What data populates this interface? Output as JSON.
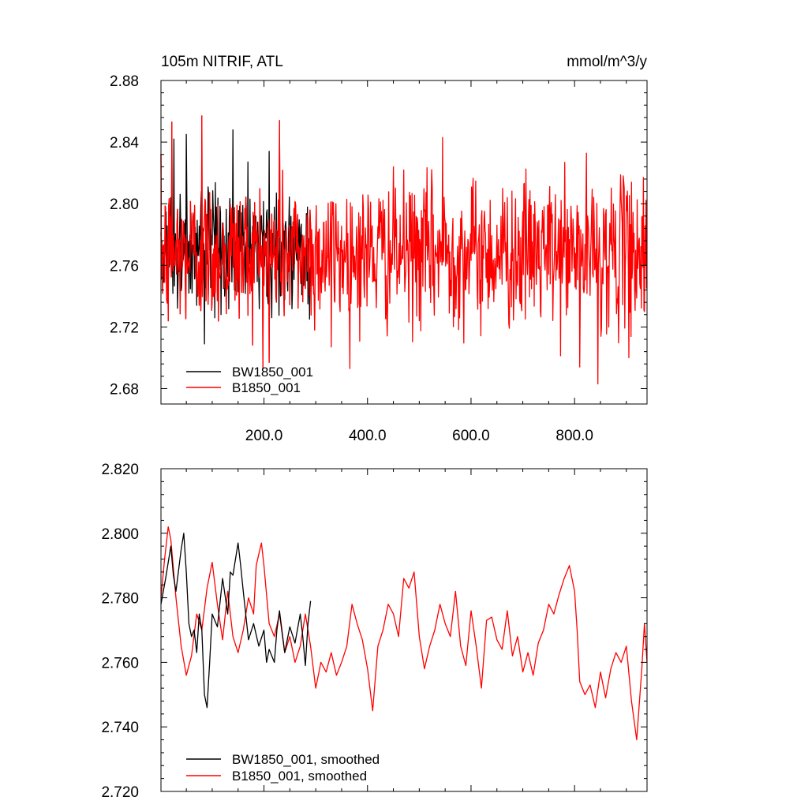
{
  "colors": {
    "BW1850_001": "#000000",
    "B1850_001": "#ff0000",
    "background": "#ffffff"
  },
  "chart_data": [
    {
      "type": "line",
      "title_left": "105m NITRIF, ATL",
      "title_right": "mmol/m^3/y",
      "xlim": [
        1,
        940
      ],
      "ylim": [
        2.67,
        2.88
      ],
      "x_ticks": [
        200,
        400,
        600,
        800
      ],
      "x_tick_labels": [
        "200.0",
        "400.0",
        "600.0",
        "800.0"
      ],
      "y_ticks": [
        2.68,
        2.72,
        2.76,
        2.8,
        2.84,
        2.88
      ],
      "y_tick_labels": [
        "2.68",
        "2.72",
        "2.76",
        "2.80",
        "2.84",
        "2.88"
      ],
      "grid": false,
      "legend_position": "bottom-left",
      "series": [
        {
          "name": "BW1850_001",
          "color": "#000000",
          "x_range": [
            1,
            290
          ],
          "mean": 2.77,
          "approx_range": [
            2.708,
            2.848
          ],
          "annotated_points": [
            [
              20,
              2.804
            ],
            [
              26,
              2.842
            ],
            [
              50,
              2.845
            ],
            [
              70,
              2.734
            ],
            [
              85,
              2.709
            ],
            [
              105,
              2.726
            ],
            [
              140,
              2.848
            ],
            [
              210,
              2.834
            ],
            [
              255,
              2.742
            ],
            [
              285,
              2.735
            ]
          ]
        },
        {
          "name": "B1850_001",
          "color": "#ff0000",
          "x_range": [
            1,
            940
          ],
          "mean": 2.768,
          "approx_range": [
            2.683,
            2.857
          ],
          "annotated_points": [
            [
              15,
              2.724
            ],
            [
              22,
              2.853
            ],
            [
              80,
              2.857
            ],
            [
              210,
              2.697
            ],
            [
              230,
              2.854
            ],
            [
              330,
              2.707
            ],
            [
              545,
              2.843
            ],
            [
              810,
              2.694
            ],
            [
              845,
              2.683
            ],
            [
              905,
              2.7
            ],
            [
              910,
              2.814
            ],
            [
              935,
              2.73
            ]
          ]
        }
      ]
    },
    {
      "type": "line",
      "xlim": [
        1,
        940
      ],
      "ylim": [
        2.72,
        2.82
      ],
      "x_ticks": [
        200,
        400,
        600,
        800
      ],
      "y_ticks": [
        2.72,
        2.74,
        2.76,
        2.78,
        2.8,
        2.82
      ],
      "y_tick_labels": [
        "2.720",
        "2.740",
        "2.760",
        "2.780",
        "2.800",
        "2.820"
      ],
      "grid": false,
      "legend_position": "bottom-left",
      "series": [
        {
          "name": "BW1850_001, smoothed",
          "color": "#000000",
          "x": [
            1,
            10,
            20,
            25,
            30,
            40,
            45,
            50,
            55,
            60,
            65,
            70,
            75,
            80,
            85,
            90,
            95,
            100,
            110,
            120,
            130,
            135,
            140,
            150,
            155,
            160,
            170,
            180,
            190,
            200,
            205,
            210,
            220,
            225,
            230,
            240,
            250,
            260,
            270,
            275,
            280,
            285,
            290
          ],
          "y": [
            2.778,
            2.786,
            2.796,
            2.787,
            2.782,
            2.795,
            2.8,
            2.788,
            2.772,
            2.768,
            2.77,
            2.763,
            2.775,
            2.77,
            2.75,
            2.746,
            2.76,
            2.775,
            2.771,
            2.786,
            2.775,
            2.788,
            2.787,
            2.797,
            2.79,
            2.782,
            2.767,
            2.772,
            2.765,
            2.77,
            2.76,
            2.764,
            2.76,
            2.77,
            2.776,
            2.763,
            2.771,
            2.766,
            2.775,
            2.768,
            2.759,
            2.772,
            2.779
          ]
        },
        {
          "name": "B1850_001, smoothed",
          "color": "#ff0000",
          "x": [
            1,
            8,
            15,
            20,
            30,
            40,
            50,
            60,
            70,
            80,
            90,
            100,
            110,
            120,
            130,
            140,
            150,
            160,
            170,
            180,
            185,
            195,
            200,
            210,
            220,
            230,
            240,
            250,
            260,
            270,
            280,
            290,
            300,
            310,
            320,
            330,
            340,
            350,
            360,
            370,
            380,
            390,
            400,
            410,
            420,
            430,
            440,
            450,
            460,
            470,
            480,
            490,
            500,
            510,
            520,
            530,
            540,
            550,
            560,
            570,
            580,
            590,
            600,
            610,
            620,
            630,
            640,
            650,
            660,
            670,
            680,
            690,
            700,
            710,
            720,
            730,
            740,
            750,
            760,
            770,
            780,
            790,
            800,
            805,
            810,
            820,
            830,
            840,
            850,
            860,
            870,
            880,
            890,
            900,
            910,
            920,
            930,
            935,
            940
          ],
          "y": [
            2.78,
            2.792,
            2.802,
            2.798,
            2.78,
            2.765,
            2.756,
            2.762,
            2.775,
            2.77,
            2.783,
            2.791,
            2.778,
            2.767,
            2.782,
            2.768,
            2.763,
            2.77,
            2.78,
            2.775,
            2.79,
            2.797,
            2.79,
            2.772,
            2.768,
            2.775,
            2.763,
            2.768,
            2.76,
            2.765,
            2.775,
            2.765,
            2.752,
            2.76,
            2.757,
            2.763,
            2.756,
            2.76,
            2.765,
            2.778,
            2.772,
            2.767,
            2.758,
            2.745,
            2.765,
            2.77,
            2.778,
            2.775,
            2.768,
            2.786,
            2.783,
            2.788,
            2.768,
            2.758,
            2.765,
            2.77,
            2.778,
            2.772,
            2.768,
            2.782,
            2.765,
            2.759,
            2.776,
            2.765,
            2.752,
            2.773,
            2.774,
            2.767,
            2.764,
            2.776,
            2.762,
            2.768,
            2.757,
            2.763,
            2.756,
            2.766,
            2.77,
            2.778,
            2.775,
            2.781,
            2.786,
            2.79,
            2.782,
            2.77,
            2.754,
            2.75,
            2.753,
            2.746,
            2.757,
            2.749,
            2.758,
            2.763,
            2.76,
            2.765,
            2.748,
            2.736,
            2.758,
            2.772,
            2.76
          ]
        }
      ]
    }
  ]
}
